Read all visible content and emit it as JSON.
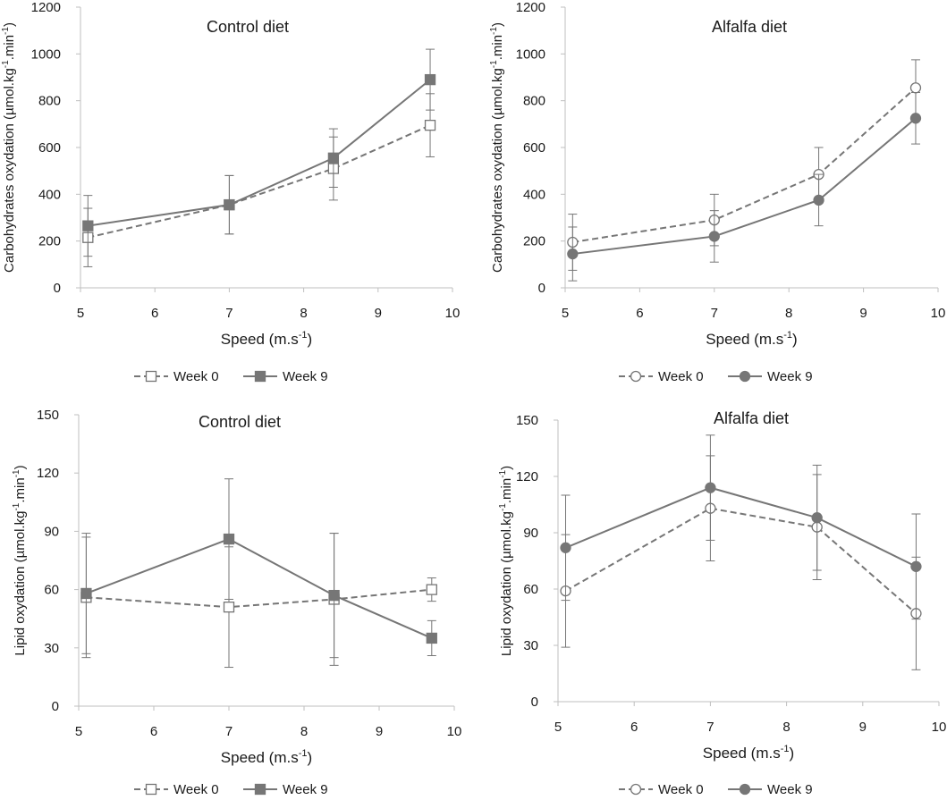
{
  "chart_data": [
    {
      "type": "line",
      "title": "Control diet",
      "xlabel": "Speed (m.s",
      "xlabel_sup": "-1",
      "xlabel_end": ")",
      "ylabel_parts": [
        "Carbohydrates oxydation (µmol.kg",
        "-1",
        ".min",
        "-1",
        ")"
      ],
      "xlim": [
        5,
        10
      ],
      "ylim": [
        0,
        1200
      ],
      "xticks": [
        "5",
        "6",
        "7",
        "8",
        "9",
        "10"
      ],
      "yticks": [
        "0",
        "200",
        "400",
        "600",
        "800",
        "1000",
        "1200"
      ],
      "series": [
        {
          "name": "Week 0",
          "marker": "square-open",
          "style": "dashed",
          "x": [
            5.1,
            7,
            8.4,
            9.7
          ],
          "y": [
            215,
            355,
            510,
            695
          ],
          "err": [
            125,
            125,
            135,
            135
          ]
        },
        {
          "name": "Week 9",
          "marker": "square-filled",
          "style": "solid",
          "x": [
            5.1,
            7,
            8.4,
            9.7
          ],
          "y": [
            265,
            355,
            555,
            890
          ],
          "err": [
            130,
            125,
            125,
            130
          ]
        }
      ]
    },
    {
      "type": "line",
      "title": "Alfalfa diet",
      "xlabel": "Speed (m.s",
      "xlabel_sup": "-1",
      "xlabel_end": ")",
      "ylabel_parts": [
        "Carbohydrates oxydation (µmol.kg",
        "-1",
        ".min",
        "-1",
        ")"
      ],
      "xlim": [
        5,
        10
      ],
      "ylim": [
        0,
        1200
      ],
      "xticks": [
        "5",
        "6",
        "7",
        "8",
        "9",
        "10"
      ],
      "yticks": [
        "0",
        "200",
        "400",
        "600",
        "800",
        "1000",
        "1200"
      ],
      "series": [
        {
          "name": "Week 0",
          "marker": "circle-open",
          "style": "dashed",
          "x": [
            5.1,
            7,
            8.4,
            9.7
          ],
          "y": [
            195,
            290,
            485,
            855
          ],
          "err": [
            120,
            110,
            115,
            120
          ]
        },
        {
          "name": "Week 9",
          "marker": "circle-filled",
          "style": "solid",
          "x": [
            5.1,
            7,
            8.4,
            9.7
          ],
          "y": [
            145,
            220,
            375,
            725
          ],
          "err": [
            115,
            110,
            110,
            110
          ]
        }
      ]
    },
    {
      "type": "line",
      "title": "Control diet",
      "xlabel": "Speed (m.s",
      "xlabel_sup": "-1",
      "xlabel_end": ")",
      "ylabel_parts": [
        "Lipid oxydation (µmol.kg",
        "-1",
        ".min",
        "-1",
        ")"
      ],
      "xlim": [
        5,
        10
      ],
      "ylim": [
        0,
        150
      ],
      "xticks": [
        "5",
        "6",
        "7",
        "8",
        "9",
        "10"
      ],
      "yticks": [
        "0",
        "30",
        "60",
        "90",
        "120",
        "150"
      ],
      "series": [
        {
          "name": "Week 0",
          "marker": "square-open",
          "style": "dashed",
          "x": [
            5.1,
            7,
            8.4,
            9.7
          ],
          "y": [
            56,
            51,
            55,
            60
          ],
          "err": [
            31,
            31,
            34,
            6
          ]
        },
        {
          "name": "Week 9",
          "marker": "square-filled",
          "style": "solid",
          "x": [
            5.1,
            7,
            8.4,
            9.7
          ],
          "y": [
            58,
            86,
            57,
            35
          ],
          "err": [
            31,
            31,
            32,
            9
          ]
        }
      ]
    },
    {
      "type": "line",
      "title": "Alfalfa diet",
      "xlabel": "Speed (m.s",
      "xlabel_sup": "-1",
      "xlabel_end": ")",
      "ylabel_parts": [
        "Lipid oxydation (µmol.kg",
        "-1",
        ".min",
        "-1",
        ")"
      ],
      "xlim": [
        5,
        10
      ],
      "ylim": [
        0,
        150
      ],
      "xticks": [
        "5",
        "6",
        "7",
        "8",
        "9",
        "10"
      ],
      "yticks": [
        "0",
        "30",
        "60",
        "90",
        "120",
        "150"
      ],
      "series": [
        {
          "name": "Week 0",
          "marker": "circle-open",
          "style": "dashed",
          "x": [
            5.1,
            7,
            8.4,
            9.7
          ],
          "y": [
            59,
            103,
            93,
            47
          ],
          "err": [
            30,
            28,
            28,
            30
          ]
        },
        {
          "name": "Week 9",
          "marker": "circle-filled",
          "style": "solid",
          "x": [
            5.1,
            7,
            8.4,
            9.7
          ],
          "y": [
            82,
            114,
            98,
            72
          ],
          "err": [
            28,
            28,
            28,
            28
          ]
        }
      ]
    }
  ],
  "colors": {
    "series": "#767676",
    "axis": "#bfbfbf"
  }
}
